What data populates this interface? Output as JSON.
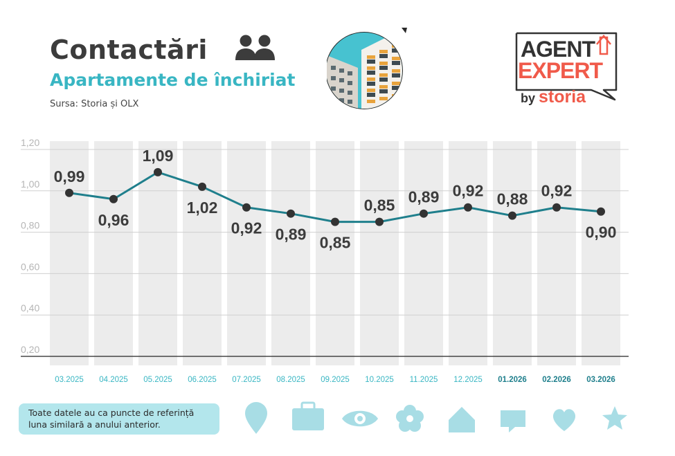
{
  "header": {
    "title": "Contactări",
    "subtitle": "Apartamente de închiriat",
    "source": "Sursa: Storia și OLX"
  },
  "logo": {
    "line1": "AGENT",
    "line2": "EXPERT",
    "by": "by",
    "brand": "storia",
    "accent_color": "#f05a4a",
    "text_color": "#333333"
  },
  "colors": {
    "line": "#1f7f8c",
    "marker": "#333333",
    "band": "#ececec",
    "accent": "#39b6c3",
    "icon": "#a8dde5"
  },
  "chart_data": {
    "type": "line",
    "categories": [
      "03.2025",
      "04.2025",
      "05.2025",
      "06.2025",
      "07.2025",
      "08.2025",
      "09.2025",
      "10.2025",
      "11.2025",
      "12.2025",
      "01.2026",
      "02.2026",
      "03.2026"
    ],
    "highlighted_categories": [
      "01.2026",
      "02.2026",
      "03.2026"
    ],
    "values": [
      0.99,
      0.96,
      1.09,
      1.02,
      0.92,
      0.89,
      0.85,
      0.85,
      0.89,
      0.92,
      0.88,
      0.92,
      0.9
    ],
    "label_positions": [
      "above",
      "below",
      "above",
      "below",
      "below",
      "below",
      "below",
      "above",
      "above",
      "above",
      "above",
      "above",
      "below"
    ],
    "yticks": [
      "0,20",
      "0,40",
      "0,60",
      "0,80",
      "1,00",
      "1,20"
    ],
    "ylim": [
      0.2,
      1.2
    ],
    "grid": true,
    "bands": true
  },
  "note": {
    "text": "Toate datele au ca puncte de referință luna similară a anului anterior."
  },
  "decor_icons": [
    "map-pin-icon",
    "briefcase-icon",
    "eye-icon",
    "flower-icon",
    "house-icon",
    "chat-bubble-icon",
    "heart-icon",
    "star-icon"
  ]
}
